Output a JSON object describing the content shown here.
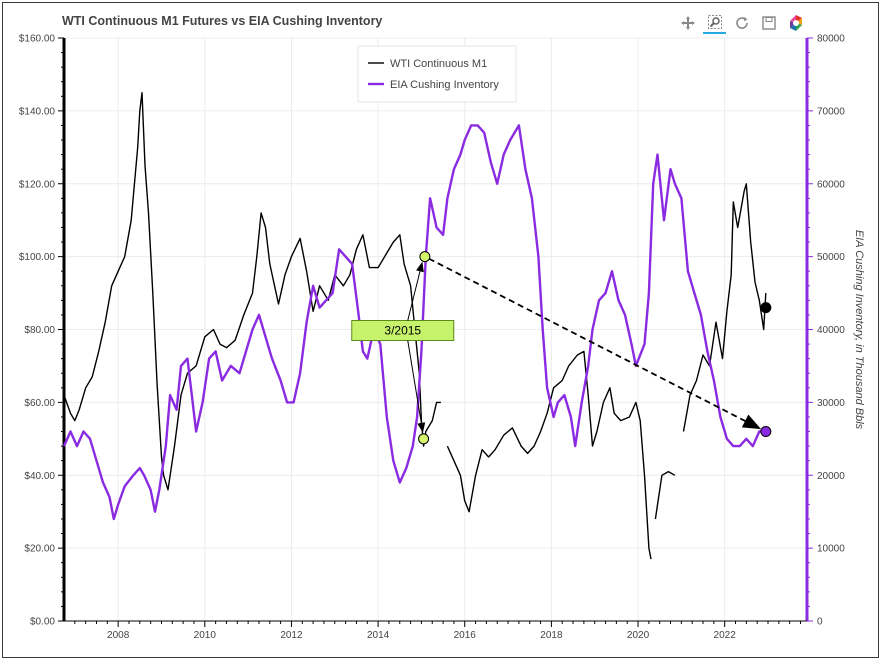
{
  "page": {
    "title": "WTI Continuous M1 Futures vs EIA Cushing Inventory"
  },
  "toolbar": {
    "tools": [
      {
        "name": "pan-tool",
        "icon": "pan-arrows-icon",
        "active": false
      },
      {
        "name": "box-zoom-tool",
        "icon": "magnifier-icon",
        "active": true
      },
      {
        "name": "reset-tool",
        "icon": "reset-arrows-icon",
        "active": false
      },
      {
        "name": "save-tool",
        "icon": "floppy-disk-icon",
        "active": false
      },
      {
        "name": "bokeh-logo",
        "icon": "bokeh-logo-icon",
        "active": false
      }
    ]
  },
  "colors": {
    "wti": "#000000",
    "cushing": "#8a2be2",
    "marker_green": "#d4f56b",
    "anno_box": "#c6f26c",
    "grid": "#ececec"
  },
  "chart_data": {
    "type": "line",
    "title": "WTI Continuous M1 Futures vs EIA Cushing Inventory",
    "xlabel": "",
    "ylabel_left": "",
    "ylabel_right": "EIA Cushing Inventory, in Thousand Bbls",
    "xlim": [
      2006.75,
      2023.9
    ],
    "ylim_left": [
      0,
      160
    ],
    "ylim_right": [
      0,
      80000
    ],
    "x_ticks": [
      2008,
      2010,
      2012,
      2014,
      2016,
      2018,
      2020,
      2022
    ],
    "x_tick_labels": [
      "2008",
      "2010",
      "2012",
      "2014",
      "2016",
      "2018",
      "2020",
      "2022"
    ],
    "y_left_ticks": [
      0,
      20,
      40,
      60,
      80,
      100,
      120,
      140,
      160
    ],
    "y_left_tick_labels": [
      "$0.00",
      "$20.00",
      "$40.00",
      "$60.00",
      "$80.00",
      "$100.00",
      "$120.00",
      "$140.00",
      "$160.00"
    ],
    "y_right_ticks": [
      0,
      10000,
      20000,
      30000,
      40000,
      50000,
      60000,
      70000,
      80000
    ],
    "y_right_tick_labels": [
      "0",
      "10000",
      "20000",
      "30000",
      "40000",
      "50000",
      "60000",
      "70000",
      "80000"
    ],
    "grid": true,
    "legend_position": "top-center",
    "series": [
      {
        "name": "WTI Continuous M1",
        "axis": "left",
        "color": "#000000",
        "points": [
          [
            2006.75,
            62
          ],
          [
            2006.9,
            57
          ],
          [
            2007.0,
            55
          ],
          [
            2007.1,
            58
          ],
          [
            2007.25,
            64
          ],
          [
            2007.4,
            67
          ],
          [
            2007.55,
            74
          ],
          [
            2007.7,
            82
          ],
          [
            2007.85,
            92
          ],
          [
            2008.0,
            96
          ],
          [
            2008.15,
            100
          ],
          [
            2008.3,
            110
          ],
          [
            2008.45,
            130
          ],
          [
            2008.5,
            140
          ],
          [
            2008.55,
            145
          ],
          [
            2008.62,
            125
          ],
          [
            2008.7,
            112
          ],
          [
            2008.8,
            90
          ],
          [
            2008.9,
            65
          ],
          [
            2009.0,
            45
          ],
          [
            2009.05,
            40
          ],
          [
            2009.15,
            36
          ],
          [
            2009.3,
            48
          ],
          [
            2009.45,
            62
          ],
          [
            2009.6,
            68
          ],
          [
            2009.8,
            70
          ],
          [
            2010.0,
            78
          ],
          [
            2010.2,
            80
          ],
          [
            2010.35,
            76
          ],
          [
            2010.5,
            75
          ],
          [
            2010.7,
            77
          ],
          [
            2010.9,
            84
          ],
          [
            2011.1,
            90
          ],
          [
            2011.2,
            100
          ],
          [
            2011.3,
            112
          ],
          [
            2011.4,
            108
          ],
          [
            2011.5,
            98
          ],
          [
            2011.7,
            87
          ],
          [
            2011.85,
            95
          ],
          [
            2012.0,
            100
          ],
          [
            2012.2,
            105
          ],
          [
            2012.35,
            96
          ],
          [
            2012.5,
            85
          ],
          [
            2012.65,
            92
          ],
          [
            2012.85,
            88
          ],
          [
            2013.0,
            95
          ],
          [
            2013.2,
            92
          ],
          [
            2013.35,
            95
          ],
          [
            2013.5,
            102
          ],
          [
            2013.65,
            106
          ],
          [
            2013.8,
            97
          ],
          [
            2014.0,
            97
          ],
          [
            2014.2,
            101
          ],
          [
            2014.35,
            104
          ],
          [
            2014.5,
            106
          ],
          [
            2014.6,
            98
          ],
          [
            2014.75,
            92
          ],
          [
            2014.85,
            80
          ],
          [
            2014.95,
            68
          ],
          [
            2015.0,
            55
          ],
          [
            2015.05,
            48
          ],
          [
            2015.1,
            52
          ],
          [
            2015.25,
            55
          ],
          [
            2015.35,
            60
          ],
          [
            2015.45,
            60
          ],
          [
            2015.55,
            null
          ],
          [
            2015.6,
            48
          ],
          [
            2015.75,
            44
          ],
          [
            2015.9,
            40
          ],
          [
            2016.0,
            33
          ],
          [
            2016.1,
            30
          ],
          [
            2016.25,
            40
          ],
          [
            2016.4,
            47
          ],
          [
            2016.55,
            45
          ],
          [
            2016.7,
            47
          ],
          [
            2016.9,
            51
          ],
          [
            2017.1,
            53
          ],
          [
            2017.3,
            48
          ],
          [
            2017.45,
            46
          ],
          [
            2017.6,
            48
          ],
          [
            2017.75,
            52
          ],
          [
            2017.9,
            57
          ],
          [
            2018.05,
            64
          ],
          [
            2018.25,
            66
          ],
          [
            2018.4,
            70
          ],
          [
            2018.6,
            73
          ],
          [
            2018.75,
            74
          ],
          [
            2018.85,
            62
          ],
          [
            2018.95,
            48
          ],
          [
            2019.05,
            52
          ],
          [
            2019.2,
            60
          ],
          [
            2019.35,
            64
          ],
          [
            2019.45,
            57
          ],
          [
            2019.6,
            55
          ],
          [
            2019.8,
            56
          ],
          [
            2019.95,
            60
          ],
          [
            2020.05,
            55
          ],
          [
            2020.15,
            40
          ],
          [
            2020.25,
            20
          ],
          [
            2020.3,
            17
          ],
          [
            2020.35,
            null
          ],
          [
            2020.4,
            28
          ],
          [
            2020.55,
            40
          ],
          [
            2020.7,
            41
          ],
          [
            2020.85,
            40
          ],
          [
            2020.95,
            null
          ],
          [
            2021.05,
            52
          ],
          [
            2021.2,
            62
          ],
          [
            2021.35,
            66
          ],
          [
            2021.5,
            73
          ],
          [
            2021.65,
            70
          ],
          [
            2021.8,
            82
          ],
          [
            2021.95,
            72
          ],
          [
            2022.05,
            85
          ],
          [
            2022.15,
            95
          ],
          [
            2022.2,
            115
          ],
          [
            2022.3,
            108
          ],
          [
            2022.45,
            118
          ],
          [
            2022.5,
            120
          ],
          [
            2022.6,
            104
          ],
          [
            2022.7,
            93
          ],
          [
            2022.8,
            88
          ],
          [
            2022.9,
            80
          ],
          [
            2022.95,
            90
          ]
        ]
      },
      {
        "name": "EIA Cushing Inventory",
        "axis": "right",
        "color": "#8a2be2",
        "points": [
          [
            2006.75,
            24000
          ],
          [
            2006.9,
            26000
          ],
          [
            2007.05,
            24000
          ],
          [
            2007.2,
            26000
          ],
          [
            2007.35,
            25000
          ],
          [
            2007.5,
            22000
          ],
          [
            2007.65,
            19000
          ],
          [
            2007.8,
            17000
          ],
          [
            2007.9,
            14000
          ],
          [
            2008.0,
            16000
          ],
          [
            2008.15,
            18500
          ],
          [
            2008.35,
            20000
          ],
          [
            2008.5,
            21000
          ],
          [
            2008.6,
            20000
          ],
          [
            2008.75,
            18000
          ],
          [
            2008.85,
            15000
          ],
          [
            2008.95,
            18000
          ],
          [
            2009.1,
            24000
          ],
          [
            2009.2,
            31000
          ],
          [
            2009.35,
            29000
          ],
          [
            2009.45,
            35000
          ],
          [
            2009.6,
            36000
          ],
          [
            2009.8,
            26000
          ],
          [
            2009.95,
            30000
          ],
          [
            2010.1,
            36000
          ],
          [
            2010.25,
            37000
          ],
          [
            2010.4,
            33000
          ],
          [
            2010.6,
            35000
          ],
          [
            2010.8,
            34000
          ],
          [
            2010.95,
            37000
          ],
          [
            2011.1,
            40000
          ],
          [
            2011.25,
            42000
          ],
          [
            2011.4,
            39000
          ],
          [
            2011.55,
            36000
          ],
          [
            2011.75,
            33000
          ],
          [
            2011.9,
            30000
          ],
          [
            2012.05,
            30000
          ],
          [
            2012.2,
            34000
          ],
          [
            2012.35,
            41000
          ],
          [
            2012.5,
            46000
          ],
          [
            2012.65,
            43000
          ],
          [
            2012.8,
            44000
          ],
          [
            2012.95,
            45000
          ],
          [
            2013.1,
            51000
          ],
          [
            2013.25,
            50000
          ],
          [
            2013.4,
            49000
          ],
          [
            2013.55,
            42000
          ],
          [
            2013.65,
            37000
          ],
          [
            2013.75,
            36000
          ],
          [
            2013.9,
            40000
          ],
          [
            2014.05,
            38000
          ],
          [
            2014.2,
            28000
          ],
          [
            2014.35,
            22000
          ],
          [
            2014.5,
            19000
          ],
          [
            2014.65,
            21000
          ],
          [
            2014.8,
            24000
          ],
          [
            2014.9,
            28000
          ],
          [
            2015.0,
            37000
          ],
          [
            2015.1,
            50000
          ],
          [
            2015.2,
            58000
          ],
          [
            2015.35,
            54000
          ],
          [
            2015.5,
            53000
          ],
          [
            2015.6,
            58000
          ],
          [
            2015.75,
            62000
          ],
          [
            2015.9,
            64000
          ],
          [
            2016.0,
            66000
          ],
          [
            2016.15,
            68000
          ],
          [
            2016.3,
            68000
          ],
          [
            2016.45,
            67000
          ],
          [
            2016.6,
            63000
          ],
          [
            2016.75,
            60000
          ],
          [
            2016.9,
            64000
          ],
          [
            2017.05,
            66000
          ],
          [
            2017.25,
            68000
          ],
          [
            2017.4,
            62000
          ],
          [
            2017.55,
            58000
          ],
          [
            2017.7,
            50000
          ],
          [
            2017.8,
            40000
          ],
          [
            2017.9,
            32000
          ],
          [
            2018.05,
            28000
          ],
          [
            2018.15,
            30000
          ],
          [
            2018.3,
            31000
          ],
          [
            2018.45,
            28000
          ],
          [
            2018.55,
            24000
          ],
          [
            2018.7,
            30000
          ],
          [
            2018.85,
            35000
          ],
          [
            2018.95,
            40000
          ],
          [
            2019.1,
            44000
          ],
          [
            2019.25,
            45000
          ],
          [
            2019.4,
            48000
          ],
          [
            2019.55,
            44000
          ],
          [
            2019.7,
            42000
          ],
          [
            2019.85,
            38000
          ],
          [
            2019.95,
            35000
          ],
          [
            2020.15,
            38000
          ],
          [
            2020.25,
            45000
          ],
          [
            2020.35,
            60000
          ],
          [
            2020.45,
            64000
          ],
          [
            2020.6,
            55000
          ],
          [
            2020.75,
            62000
          ],
          [
            2020.85,
            60000
          ],
          [
            2021.0,
            58000
          ],
          [
            2021.15,
            48000
          ],
          [
            2021.3,
            45000
          ],
          [
            2021.45,
            42000
          ],
          [
            2021.6,
            37000
          ],
          [
            2021.75,
            33000
          ],
          [
            2021.9,
            28000
          ],
          [
            2022.05,
            25000
          ],
          [
            2022.2,
            24000
          ],
          [
            2022.35,
            24000
          ],
          [
            2022.5,
            25000
          ],
          [
            2022.65,
            24000
          ],
          [
            2022.8,
            26000
          ],
          [
            2022.95,
            26000
          ]
        ]
      }
    ],
    "markers": [
      {
        "x": 2015.08,
        "y": 50000,
        "axis": "right",
        "color": "#d4f56b",
        "label": ""
      },
      {
        "x": 2015.05,
        "y": 50,
        "axis": "left",
        "color": "#d4f56b",
        "label": ""
      },
      {
        "x": 2022.95,
        "y": 86,
        "axis": "left",
        "color": "#000000",
        "label": ""
      },
      {
        "x": 2022.95,
        "y": 26000,
        "axis": "right",
        "color": "#8a2be2",
        "label": ""
      }
    ],
    "annotations": [
      {
        "text": "3/2015",
        "x": 2014.5,
        "y": 80,
        "axis": "left"
      }
    ]
  }
}
